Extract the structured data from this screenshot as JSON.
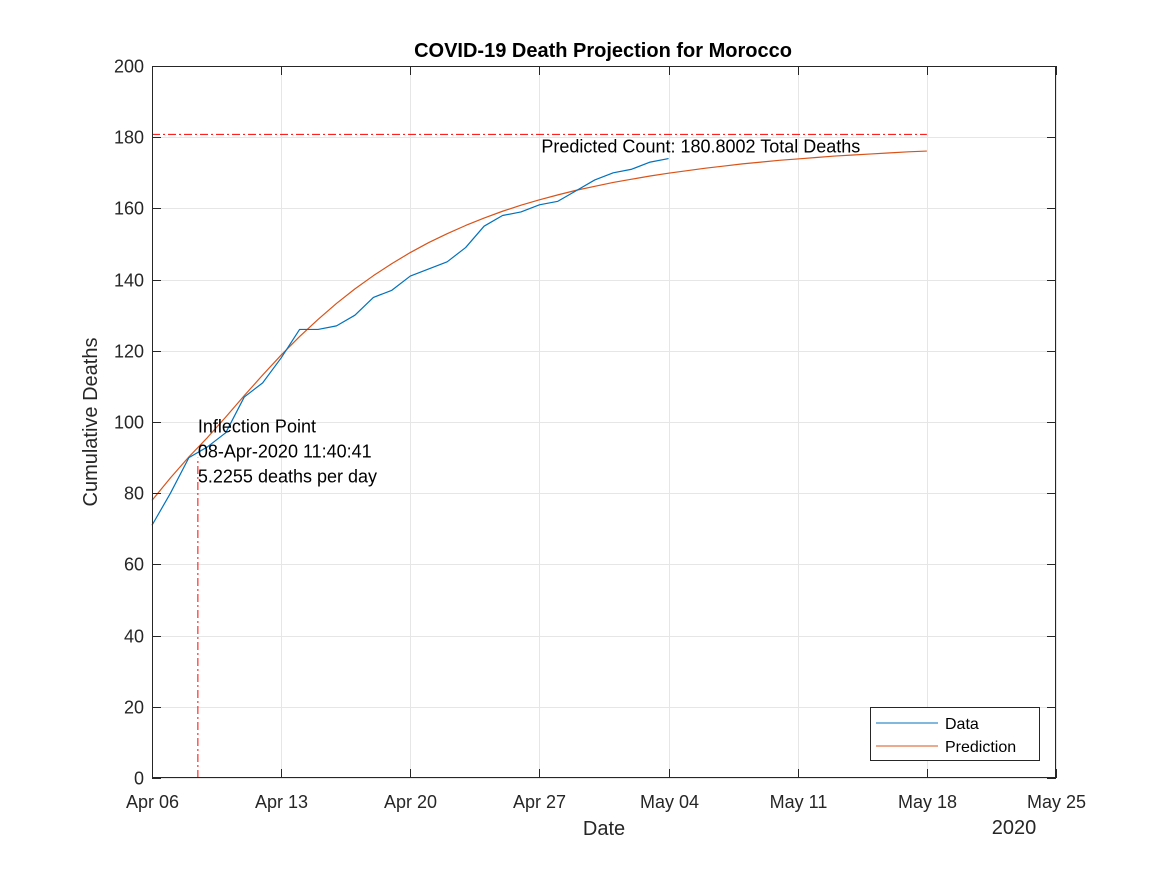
{
  "chart_data": {
    "type": "line",
    "title": "COVID-19 Death Projection for Morocco",
    "xlabel": "Date",
    "ylabel": "Cumulative Deaths",
    "x_secondary_label": "2020",
    "xlim": [
      "2020-04-06",
      "2020-05-25"
    ],
    "ylim": [
      0,
      200
    ],
    "x_ticks": [
      {
        "date": "2020-04-06",
        "label": "Apr 06"
      },
      {
        "date": "2020-04-13",
        "label": "Apr 13"
      },
      {
        "date": "2020-04-20",
        "label": "Apr 20"
      },
      {
        "date": "2020-04-27",
        "label": "Apr 27"
      },
      {
        "date": "2020-05-04",
        "label": "May 04"
      },
      {
        "date": "2020-05-11",
        "label": "May 11"
      },
      {
        "date": "2020-05-18",
        "label": "May 18"
      },
      {
        "date": "2020-05-25",
        "label": "May 25"
      }
    ],
    "y_ticks": [
      0,
      20,
      40,
      60,
      80,
      100,
      120,
      140,
      160,
      180,
      200
    ],
    "grid": true,
    "legend_position": "bottom-right",
    "series": [
      {
        "name": "Data",
        "color": "#0072BD",
        "points": [
          [
            "2020-04-06",
            71
          ],
          [
            "2020-04-07",
            80
          ],
          [
            "2020-04-08",
            90
          ],
          [
            "2020-04-09",
            93
          ],
          [
            "2020-04-10",
            97
          ],
          [
            "2020-04-11",
            107
          ],
          [
            "2020-04-12",
            111
          ],
          [
            "2020-04-13",
            118
          ],
          [
            "2020-04-14",
            126
          ],
          [
            "2020-04-15",
            126
          ],
          [
            "2020-04-16",
            127
          ],
          [
            "2020-04-17",
            130
          ],
          [
            "2020-04-18",
            135
          ],
          [
            "2020-04-19",
            137
          ],
          [
            "2020-04-20",
            141
          ],
          [
            "2020-04-21",
            143
          ],
          [
            "2020-04-22",
            145
          ],
          [
            "2020-04-23",
            149
          ],
          [
            "2020-04-24",
            155
          ],
          [
            "2020-04-25",
            158
          ],
          [
            "2020-04-26",
            159
          ],
          [
            "2020-04-27",
            161
          ],
          [
            "2020-04-28",
            162
          ],
          [
            "2020-04-29",
            165
          ],
          [
            "2020-04-30",
            168
          ],
          [
            "2020-05-01",
            170
          ],
          [
            "2020-05-02",
            171
          ],
          [
            "2020-05-03",
            173
          ],
          [
            "2020-05-04",
            174
          ]
        ]
      },
      {
        "name": "Prediction",
        "color": "#D95319",
        "points": [
          [
            "2020-04-06",
            78.0
          ],
          [
            "2020-04-07",
            84.3
          ],
          [
            "2020-04-08",
            90.2
          ],
          [
            "2020-04-09",
            95.6
          ],
          [
            "2020-04-10",
            101.4
          ],
          [
            "2020-04-11",
            107.4
          ],
          [
            "2020-04-12",
            113.2
          ],
          [
            "2020-04-13",
            118.8
          ],
          [
            "2020-04-14",
            124.0
          ],
          [
            "2020-04-15",
            128.8
          ],
          [
            "2020-04-16",
            133.3
          ],
          [
            "2020-04-17",
            137.4
          ],
          [
            "2020-04-18",
            141.1
          ],
          [
            "2020-04-19",
            144.5
          ],
          [
            "2020-04-20",
            147.6
          ],
          [
            "2020-04-21",
            150.4
          ],
          [
            "2020-04-22",
            152.9
          ],
          [
            "2020-04-23",
            155.2
          ],
          [
            "2020-04-24",
            157.3
          ],
          [
            "2020-04-25",
            159.2
          ],
          [
            "2020-04-26",
            160.9
          ],
          [
            "2020-04-27",
            162.4
          ],
          [
            "2020-04-28",
            163.8
          ],
          [
            "2020-04-29",
            165.1
          ],
          [
            "2020-04-30",
            166.2
          ],
          [
            "2020-05-01",
            167.3
          ],
          [
            "2020-05-02",
            168.2
          ],
          [
            "2020-05-03",
            169.1
          ],
          [
            "2020-05-04",
            169.9
          ],
          [
            "2020-05-05",
            170.6
          ],
          [
            "2020-05-06",
            171.3
          ],
          [
            "2020-05-07",
            171.9
          ],
          [
            "2020-05-08",
            172.5
          ],
          [
            "2020-05-09",
            173.0
          ],
          [
            "2020-05-10",
            173.5
          ],
          [
            "2020-05-11",
            173.9
          ],
          [
            "2020-05-12",
            174.3
          ],
          [
            "2020-05-13",
            174.7
          ],
          [
            "2020-05-14",
            175.0
          ],
          [
            "2020-05-15",
            175.3
          ],
          [
            "2020-05-16",
            175.6
          ],
          [
            "2020-05-17",
            175.9
          ],
          [
            "2020-05-18",
            176.1
          ]
        ]
      }
    ],
    "reference_lines": [
      {
        "orientation": "horizontal",
        "y": 180.8002,
        "x_start": "2020-04-06",
        "x_end": "2020-05-18",
        "color": "#FF0000",
        "style": "dash-dot"
      },
      {
        "orientation": "vertical",
        "x": "2020-04-08T11:40:41",
        "y_start": 0,
        "y_end": 90,
        "color": "#FF0000",
        "style": "dash-dot"
      }
    ],
    "annotations": {
      "predicted_count": {
        "text": "Predicted Count: 180.8002 Total Deaths",
        "anchor_date": "2020-04-27",
        "anchor_value": 180.8002
      },
      "inflection": {
        "anchor_date": "2020-04-08T11:40:41",
        "anchor_value": 97,
        "lines": [
          "Inflection Point",
          "08-Apr-2020 11:40:41",
          "5.2255 deaths per day"
        ]
      }
    }
  }
}
